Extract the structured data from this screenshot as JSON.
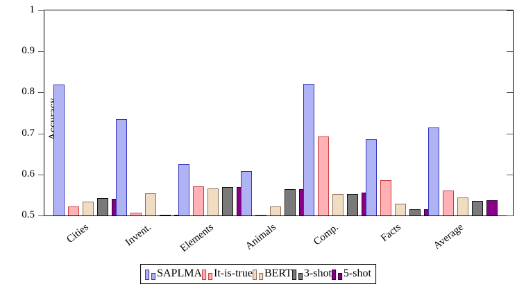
{
  "chart_data": {
    "type": "bar",
    "title": "",
    "xlabel": "",
    "ylabel": "Accuracy",
    "ylim": [
      0.5,
      1.0
    ],
    "ytick_labels": [
      "0.5",
      "0.6",
      "0.7",
      "0.8",
      "0.9",
      "1"
    ],
    "yticks": [
      0.5,
      0.6,
      0.7,
      0.8,
      0.9,
      1.0
    ],
    "grid": "off",
    "legend_position": "below-center",
    "categories": [
      "Cities",
      "Invent.",
      "Elements",
      "Animals",
      "Comp.",
      "Facts",
      "Average"
    ],
    "series": [
      {
        "name": "SAPLMA",
        "fill": "#b0b3f3",
        "border": "#3434bd",
        "values": [
          0.82,
          0.735,
          0.625,
          0.608,
          0.821,
          0.686,
          0.714
        ]
      },
      {
        "name": "It-is-true",
        "fill": "#ffb1b5",
        "border": "#c83c3c",
        "values": [
          0.522,
          0.506,
          0.571,
          0.501,
          0.692,
          0.586,
          0.561
        ]
      },
      {
        "name": "BERT",
        "fill": "#efdcc3",
        "border": "#8f6f4f",
        "values": [
          0.534,
          0.554,
          0.566,
          0.522,
          0.553,
          0.528,
          0.544
        ]
      },
      {
        "name": "3-shot",
        "fill": "#7a7a7a",
        "border": "#141414",
        "values": [
          0.542,
          0.5,
          0.569,
          0.565,
          0.552,
          0.516,
          0.536
        ]
      },
      {
        "name": "5-shot",
        "fill": "#870087",
        "border": "#2a002a",
        "values": [
          0.541,
          0.501,
          0.569,
          0.565,
          0.556,
          0.515,
          0.537
        ]
      }
    ]
  }
}
